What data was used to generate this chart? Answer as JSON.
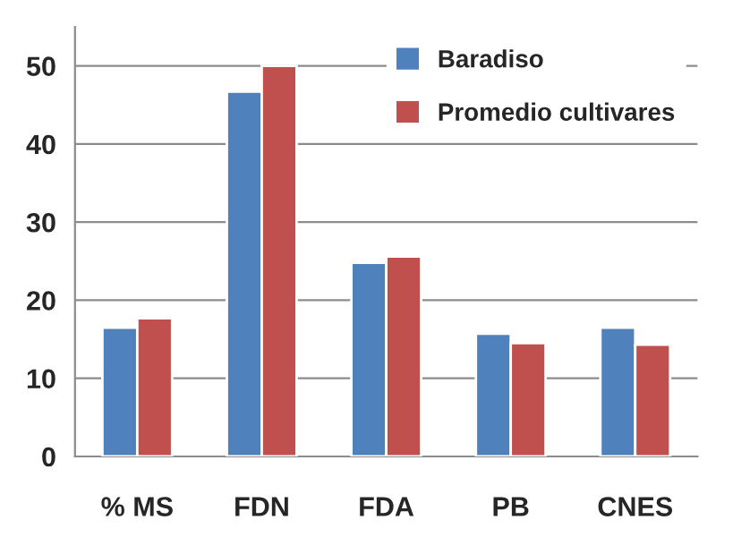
{
  "chart_data": {
    "type": "bar",
    "categories": [
      "% MS",
      "FDN",
      "FDA",
      "PB",
      "CNES"
    ],
    "series": [
      {
        "name": "Baradiso",
        "color": "#4f81bd",
        "values": [
          16.5,
          46.7,
          24.8,
          15.7,
          16.5
        ]
      },
      {
        "name": "Promedio cultivares",
        "color": "#c0504d",
        "values": [
          17.7,
          50,
          25.6,
          14.5,
          14.3
        ]
      }
    ],
    "ylim": [
      0,
      55
    ],
    "yticks": [
      0,
      10,
      20,
      30,
      40,
      50
    ],
    "grid": "y",
    "legend": "top right"
  }
}
